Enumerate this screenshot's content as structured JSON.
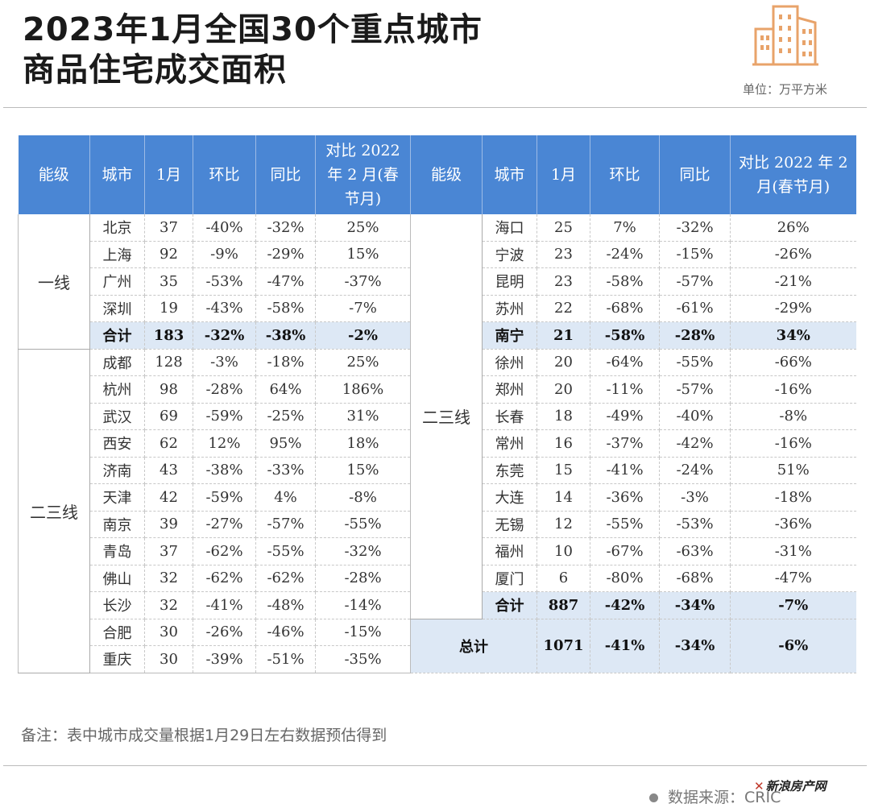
{
  "title": {
    "line1": "2023年1月全国30个重点城市",
    "line2": "商品住宅成交面积"
  },
  "unit": "单位：万平方米",
  "logo_icon": "city-buildings-icon",
  "accent_color": "#4a86d4",
  "headers_left": [
    "能级",
    "城市",
    "1月",
    "环比",
    "同比",
    "对比 2022 年 2 月(春节月)"
  ],
  "headers_right": [
    "能级",
    "城市",
    "1月",
    "环比",
    "同比",
    "对比 2022 年 2 月(春节月)"
  ],
  "tiers": {
    "first": "一线",
    "other": "二三线"
  },
  "left_rows": [
    [
      "北京",
      "37",
      "-40%",
      "-32%",
      "25%"
    ],
    [
      "上海",
      "92",
      "-9%",
      "-29%",
      "15%"
    ],
    [
      "广州",
      "35",
      "-53%",
      "-47%",
      "-37%"
    ],
    [
      "深圳",
      "19",
      "-43%",
      "-58%",
      "-7%"
    ],
    [
      "合计",
      "183",
      "-32%",
      "-38%",
      "-2%"
    ],
    [
      "成都",
      "128",
      "-3%",
      "-18%",
      "25%"
    ],
    [
      "杭州",
      "98",
      "-28%",
      "64%",
      "186%"
    ],
    [
      "武汉",
      "69",
      "-59%",
      "-25%",
      "31%"
    ],
    [
      "西安",
      "62",
      "12%",
      "95%",
      "18%"
    ],
    [
      "济南",
      "43",
      "-38%",
      "-33%",
      "15%"
    ],
    [
      "天津",
      "42",
      "-59%",
      "4%",
      "-8%"
    ],
    [
      "南京",
      "39",
      "-27%",
      "-57%",
      "-55%"
    ],
    [
      "青岛",
      "37",
      "-62%",
      "-55%",
      "-32%"
    ],
    [
      "佛山",
      "32",
      "-62%",
      "-62%",
      "-28%"
    ],
    [
      "长沙",
      "32",
      "-41%",
      "-48%",
      "-14%"
    ],
    [
      "合肥",
      "30",
      "-26%",
      "-46%",
      "-15%"
    ],
    [
      "重庆",
      "30",
      "-39%",
      "-51%",
      "-35%"
    ]
  ],
  "right_rows": [
    [
      "海口",
      "25",
      "7%",
      "-32%",
      "26%"
    ],
    [
      "宁波",
      "23",
      "-24%",
      "-15%",
      "-26%"
    ],
    [
      "昆明",
      "23",
      "-58%",
      "-57%",
      "-21%"
    ],
    [
      "苏州",
      "22",
      "-68%",
      "-61%",
      "-29%"
    ],
    [
      "南宁",
      "21",
      "-58%",
      "-28%",
      "34%"
    ],
    [
      "徐州",
      "20",
      "-64%",
      "-55%",
      "-66%"
    ],
    [
      "郑州",
      "20",
      "-11%",
      "-57%",
      "-16%"
    ],
    [
      "长春",
      "18",
      "-49%",
      "-40%",
      "-8%"
    ],
    [
      "常州",
      "16",
      "-37%",
      "-42%",
      "-16%"
    ],
    [
      "东莞",
      "15",
      "-41%",
      "-24%",
      "51%"
    ],
    [
      "大连",
      "14",
      "-36%",
      "-3%",
      "-18%"
    ],
    [
      "无锡",
      "12",
      "-55%",
      "-53%",
      "-36%"
    ],
    [
      "福州",
      "10",
      "-67%",
      "-63%",
      "-31%"
    ],
    [
      "厦门",
      "6",
      "-80%",
      "-68%",
      "-47%"
    ],
    [
      "合计",
      "887",
      "-42%",
      "-34%",
      "-7%"
    ]
  ],
  "grand_total": [
    "总计",
    "1071",
    "-41%",
    "-34%",
    "-6%"
  ],
  "note": "备注：表中城市成交量根据1月29日左右数据预估得到",
  "source": "数据来源：CRIC",
  "watermark": "新浪房产网"
}
